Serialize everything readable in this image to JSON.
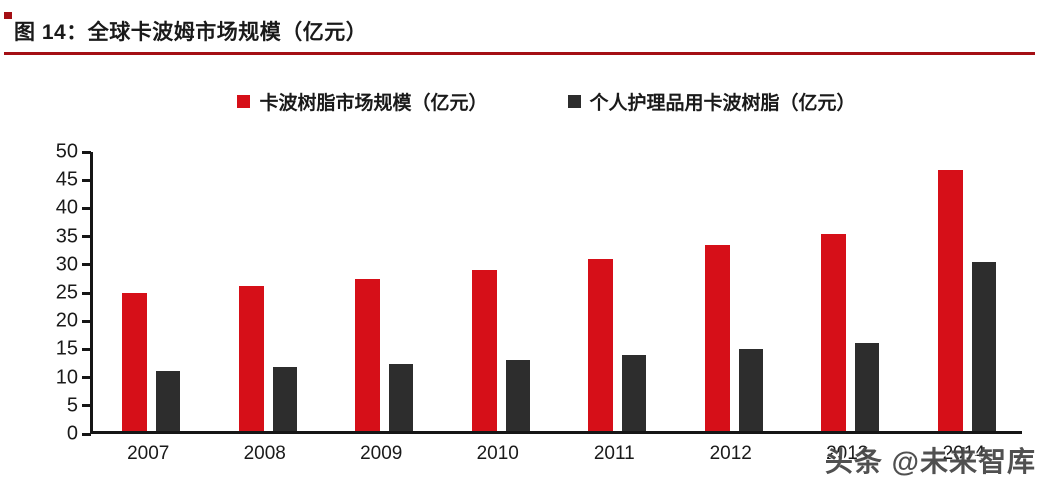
{
  "page": {
    "title": "图 14：全球卡波姆市场规模（亿元）",
    "watermark": "头条 @未来智库"
  },
  "colors": {
    "series_primary": "#d60f18",
    "series_secondary": "#2d2d2d",
    "title_rule": "#a40e14",
    "axis": "#161616",
    "text": "#1a1a1a",
    "watermark": "#474747"
  },
  "legend": [
    {
      "label": "卡波树脂市场规模（亿元）",
      "color": "#d60f18"
    },
    {
      "label": "个人护理品用卡波树脂（亿元）",
      "color": "#2d2d2d"
    }
  ],
  "chart_data": {
    "type": "bar",
    "title": "全球卡波姆市场规模（亿元）",
    "categories": [
      "2007",
      "2008",
      "2009",
      "2010",
      "2011",
      "2012",
      "2013",
      "2014"
    ],
    "series": [
      {
        "name": "卡波树脂市场规模（亿元）",
        "color": "#d60f18",
        "values": [
          24.5,
          25.7,
          27.0,
          28.5,
          30.5,
          33.0,
          34.9,
          46.2
        ]
      },
      {
        "name": "个人护理品用卡波树脂（亿元）",
        "color": "#2d2d2d",
        "values": [
          10.6,
          11.4,
          11.9,
          12.6,
          13.5,
          14.5,
          15.6,
          30.0
        ]
      }
    ],
    "xlabel": "",
    "ylabel": "",
    "ylim": [
      0,
      50
    ],
    "ytick_step": 5,
    "grid": false,
    "legend_position": "top"
  }
}
